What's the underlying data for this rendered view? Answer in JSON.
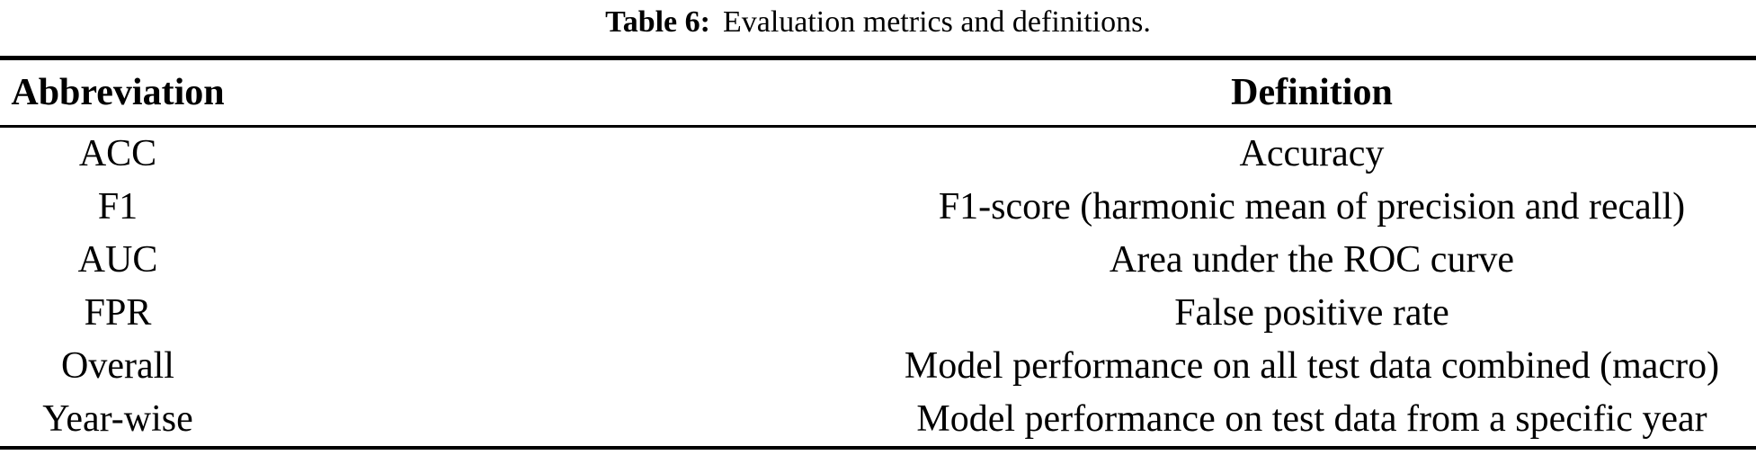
{
  "caption": {
    "label": "Table 6:",
    "text": "Evaluation metrics and definitions."
  },
  "table": {
    "headers": {
      "abbreviation": "Abbreviation",
      "definition": "Definition"
    },
    "rows": [
      {
        "abbr": "ACC",
        "definition": "Accuracy"
      },
      {
        "abbr": "F1",
        "definition": "F1-score (harmonic mean of precision and recall)"
      },
      {
        "abbr": "AUC",
        "definition": "Area under the ROC curve"
      },
      {
        "abbr": "FPR",
        "definition": "False positive rate"
      },
      {
        "abbr": "Overall",
        "definition": "Model performance on all test data combined (macro)"
      },
      {
        "abbr": "Year-wise",
        "definition": "Model performance on test data from a specific year"
      }
    ]
  },
  "colors": {
    "text": "#000000",
    "background": "#ffffff",
    "rule": "#000000"
  }
}
